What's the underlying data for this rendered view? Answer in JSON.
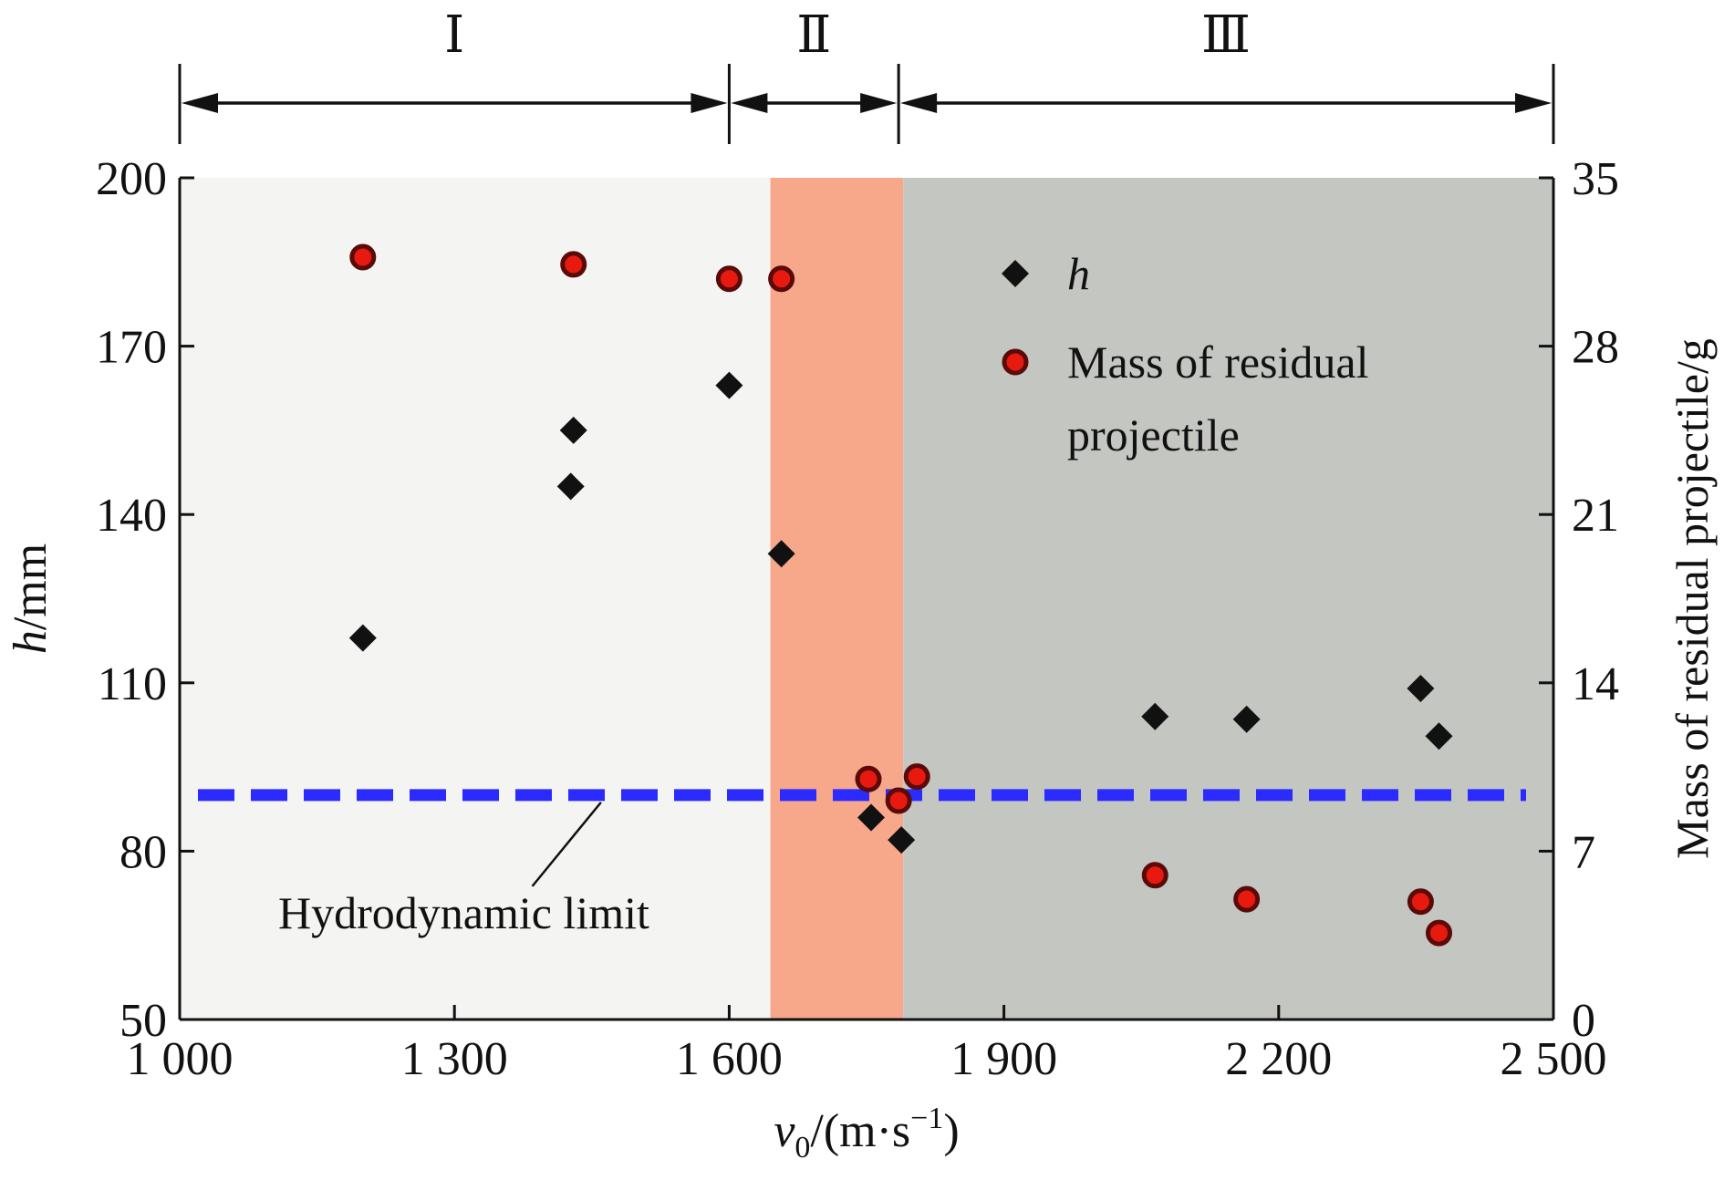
{
  "chart_data": {
    "type": "scatter",
    "title": "",
    "xlabel": "v0/(m·s⁻¹)",
    "xlabel_main": "v",
    "xlabel_sub": "0",
    "xlabel_rest": "/(m·s",
    "xlabel_sup": "−1",
    "xlabel_end": ")",
    "ylabel_left": "h/mm",
    "ylabel_left_italic": "h",
    "ylabel_left_rest": "/mm",
    "ylabel_right": "Mass of residual projectile/g",
    "xlim": [
      1000,
      2500
    ],
    "ylim_left": [
      50,
      200
    ],
    "ylim_right": [
      0,
      35
    ],
    "xticks": [
      1000,
      1300,
      1600,
      1900,
      2200,
      2500
    ],
    "xtick_labels": [
      "1 000",
      "1 300",
      "1 600",
      "1 900",
      "2 200",
      "2 500"
    ],
    "yticks_left": [
      50,
      80,
      110,
      140,
      170,
      200
    ],
    "yticks_right": [
      0,
      7,
      14,
      21,
      28,
      35
    ],
    "regions": [
      {
        "label": "Ⅰ",
        "x_start": 1000,
        "x_end": 1645,
        "color": "#f4f4f2",
        "arrow_start": 1000,
        "arrow_end": 1600
      },
      {
        "label": "Ⅱ",
        "x_start": 1645,
        "x_end": 1790,
        "color": "#f7a78a",
        "arrow_start": 1600,
        "arrow_end": 1785
      },
      {
        "label": "Ⅲ",
        "x_start": 1790,
        "x_end": 2500,
        "color": "#c4c6c2",
        "arrow_start": 1785,
        "arrow_end": 2500
      }
    ],
    "hydrodynamic_limit": {
      "y": 90,
      "label": "Hydrodynamic limit",
      "color": "#2b2bff"
    },
    "series": [
      {
        "name": "h",
        "axis": "left",
        "marker": "diamond",
        "color": "#111111",
        "points": [
          [
            1200,
            118
          ],
          [
            1430,
            155
          ],
          [
            1427,
            145
          ],
          [
            1600,
            163
          ],
          [
            1657,
            133
          ],
          [
            1755,
            86
          ],
          [
            1788,
            82
          ],
          [
            2065,
            104
          ],
          [
            2165,
            103.5
          ],
          [
            2355,
            109
          ],
          [
            2375,
            100.5
          ]
        ]
      },
      {
        "name": "Mass of residual projectile",
        "axis": "right",
        "marker": "circle",
        "color": "#e81a10",
        "points": [
          [
            1200,
            31.7
          ],
          [
            1430,
            31.4
          ],
          [
            1600,
            30.8
          ],
          [
            1657,
            30.8
          ],
          [
            1752,
            10
          ],
          [
            1785,
            9.1
          ],
          [
            1805,
            10.1
          ],
          [
            2065,
            6.0
          ],
          [
            2165,
            5.0
          ],
          [
            2355,
            4.9
          ],
          [
            2375,
            3.6
          ]
        ]
      }
    ],
    "legend": [
      {
        "label_italic": "h"
      },
      {
        "label_line1": "Mass of residual",
        "label_line2": "projectile"
      }
    ],
    "legend_position": "top-right",
    "grid": false
  }
}
